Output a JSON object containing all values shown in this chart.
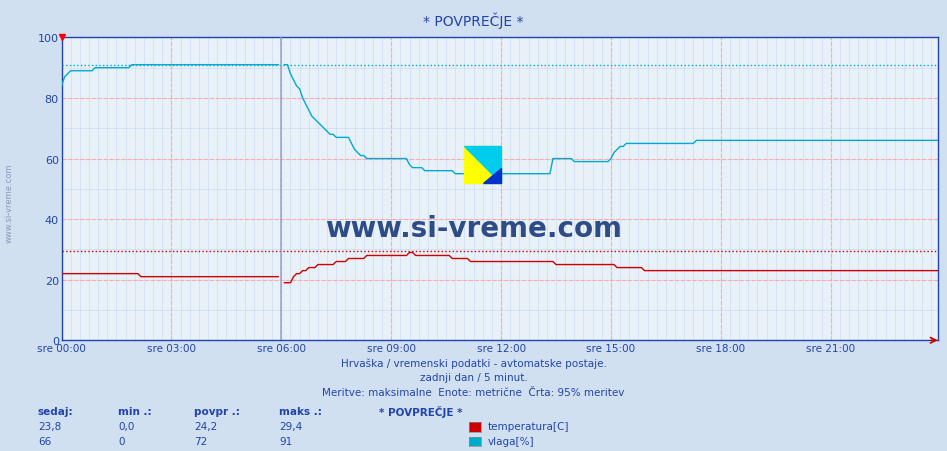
{
  "title": "* POVPREČJE *",
  "background_color": "#d0e0f0",
  "plot_bg_color": "#e8f0f8",
  "xlim": [
    0,
    287
  ],
  "ylim": [
    0,
    100
  ],
  "yticks": [
    0,
    20,
    40,
    60,
    80,
    100
  ],
  "xtick_labels": [
    "sre 00:00",
    "sre 03:00",
    "sre 06:00",
    "sre 09:00",
    "sre 12:00",
    "sre 15:00",
    "sre 18:00",
    "sre 21:00"
  ],
  "xtick_positions": [
    0,
    36,
    72,
    108,
    144,
    180,
    216,
    252
  ],
  "temp_color": "#cc0000",
  "vlaga_color": "#00aacc",
  "hline_temp_max": 29.4,
  "hline_vlaga_max": 91,
  "watermark": "www.si-vreme.com",
  "subtitle1": "Hrvaška / vremenski podatki - avtomatske postaje.",
  "subtitle2": "zadnji dan / 5 minut.",
  "subtitle3": "Meritve: maksimalne  Enote: metrične  Črta: 95% meritev",
  "legend_title": "* POVPREČJE *",
  "temp_label": "temperatura[C]",
  "vlaga_label": "vlaga[%]",
  "sedaj_temp": "23,8",
  "min_temp": "0,0",
  "povpr_temp": "24,2",
  "maks_temp": "29,4",
  "sedaj_vlaga": "66",
  "min_vlaga": "0",
  "povpr_vlaga": "72",
  "maks_vlaga": "91",
  "spike_index": 72,
  "temp_data": [
    22,
    22,
    22,
    22,
    22,
    22,
    22,
    22,
    22,
    22,
    22,
    22,
    22,
    22,
    22,
    22,
    22,
    22,
    22,
    22,
    22,
    22,
    22,
    22,
    22,
    22,
    21,
    21,
    21,
    21,
    21,
    21,
    21,
    21,
    21,
    21,
    21,
    21,
    21,
    21,
    21,
    21,
    21,
    21,
    21,
    21,
    21,
    21,
    21,
    21,
    21,
    21,
    21,
    21,
    21,
    21,
    21,
    21,
    21,
    21,
    21,
    21,
    21,
    21,
    21,
    21,
    21,
    21,
    21,
    21,
    21,
    21,
    0,
    19,
    19,
    19,
    21,
    22,
    22,
    23,
    23,
    24,
    24,
    24,
    25,
    25,
    25,
    25,
    25,
    25,
    26,
    26,
    26,
    26,
    27,
    27,
    27,
    27,
    27,
    27,
    28,
    28,
    28,
    28,
    28,
    28,
    28,
    28,
    28,
    28,
    28,
    28,
    28,
    28,
    29,
    29,
    28,
    28,
    28,
    28,
    28,
    28,
    28,
    28,
    28,
    28,
    28,
    28,
    27,
    27,
    27,
    27,
    27,
    27,
    26,
    26,
    26,
    26,
    26,
    26,
    26,
    26,
    26,
    26,
    26,
    26,
    26,
    26,
    26,
    26,
    26,
    26,
    26,
    26,
    26,
    26,
    26,
    26,
    26,
    26,
    26,
    26,
    25,
    25,
    25,
    25,
    25,
    25,
    25,
    25,
    25,
    25,
    25,
    25,
    25,
    25,
    25,
    25,
    25,
    25,
    25,
    25,
    24,
    24,
    24,
    24,
    24,
    24,
    24,
    24,
    24,
    23,
    23,
    23,
    23,
    23,
    23,
    23,
    23,
    23,
    23,
    23,
    23,
    23,
    23,
    23,
    23,
    23,
    23,
    23,
    23,
    23,
    23,
    23,
    23,
    23,
    23,
    23,
    23,
    23,
    23,
    23,
    23,
    23,
    23,
    23,
    23,
    23,
    23,
    23,
    23,
    23,
    23,
    23,
    23,
    23,
    23,
    23,
    23,
    23,
    23,
    23,
    23,
    23,
    23,
    23,
    23,
    23,
    23,
    23,
    23,
    23,
    23,
    23,
    23,
    23,
    23,
    23,
    23,
    23,
    23,
    23,
    23,
    23,
    23,
    23,
    23,
    23,
    23,
    23,
    23,
    23,
    23,
    23,
    23,
    23,
    23,
    23,
    23,
    23,
    23,
    23,
    23,
    23,
    23,
    23,
    23,
    23
  ],
  "vlaga_data": [
    84,
    87,
    88,
    89,
    89,
    89,
    89,
    89,
    89,
    89,
    89,
    90,
    90,
    90,
    90,
    90,
    90,
    90,
    90,
    90,
    90,
    90,
    90,
    91,
    91,
    91,
    91,
    91,
    91,
    91,
    91,
    91,
    91,
    91,
    91,
    91,
    91,
    91,
    91,
    91,
    91,
    91,
    91,
    91,
    91,
    91,
    91,
    91,
    91,
    91,
    91,
    91,
    91,
    91,
    91,
    91,
    91,
    91,
    91,
    91,
    91,
    91,
    91,
    91,
    91,
    91,
    91,
    91,
    91,
    91,
    91,
    91,
    0,
    91,
    91,
    88,
    86,
    84,
    83,
    80,
    78,
    76,
    74,
    73,
    72,
    71,
    70,
    69,
    68,
    68,
    67,
    67,
    67,
    67,
    67,
    65,
    63,
    62,
    61,
    61,
    60,
    60,
    60,
    60,
    60,
    60,
    60,
    60,
    60,
    60,
    60,
    60,
    60,
    60,
    58,
    57,
    57,
    57,
    57,
    56,
    56,
    56,
    56,
    56,
    56,
    56,
    56,
    56,
    56,
    55,
    55,
    55,
    55,
    55,
    55,
    55,
    55,
    55,
    55,
    55,
    55,
    55,
    55,
    55,
    55,
    55,
    55,
    55,
    55,
    55,
    55,
    55,
    55,
    55,
    55,
    55,
    55,
    55,
    55,
    55,
    55,
    60,
    60,
    60,
    60,
    60,
    60,
    60,
    59,
    59,
    59,
    59,
    59,
    59,
    59,
    59,
    59,
    59,
    59,
    59,
    60,
    62,
    63,
    64,
    64,
    65,
    65,
    65,
    65,
    65,
    65,
    65,
    65,
    65,
    65,
    65,
    65,
    65,
    65,
    65,
    65,
    65,
    65,
    65,
    65,
    65,
    65,
    65,
    66,
    66,
    66,
    66,
    66,
    66,
    66,
    66,
    66,
    66,
    66,
    66,
    66,
    66,
    66,
    66,
    66,
    66,
    66,
    66,
    66,
    66,
    66,
    66,
    66,
    66,
    66,
    66,
    66,
    66,
    66,
    66,
    66,
    66,
    66,
    66,
    66,
    66,
    66,
    66,
    66,
    66,
    66,
    66,
    66,
    66,
    66,
    66,
    66,
    66,
    66,
    66,
    66,
    66,
    66,
    66,
    66,
    66,
    66,
    66,
    66,
    66,
    66,
    66,
    66,
    66,
    66,
    66,
    66,
    66,
    66,
    66,
    66,
    66,
    66,
    66,
    66,
    66,
    66,
    66
  ]
}
